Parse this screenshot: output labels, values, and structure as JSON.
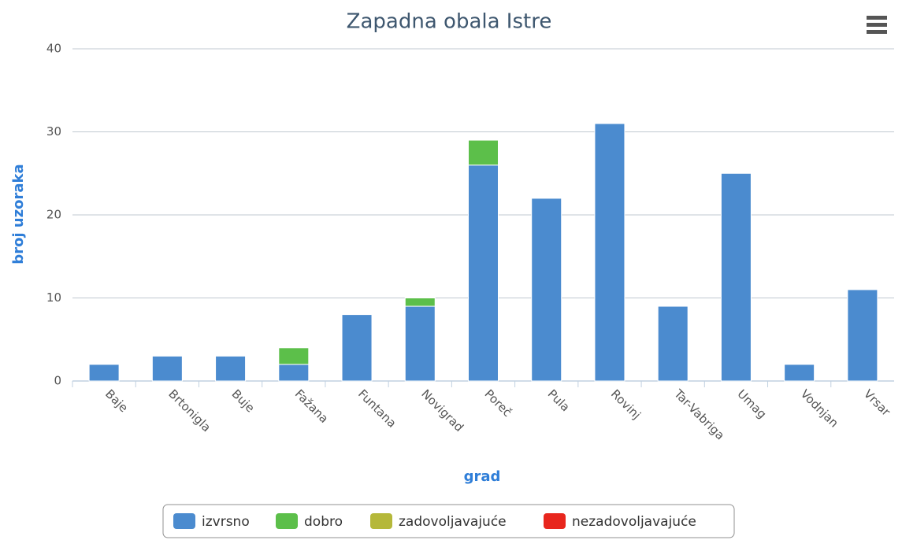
{
  "chart_data": {
    "type": "bar",
    "stacked": true,
    "title": "Zapadna obala Istre",
    "x_label": "grad",
    "y_label": "broj uzoraka",
    "categories": [
      "Baje",
      "Brtonigla",
      "Buje",
      "Fažana",
      "Funtana",
      "Novigrad",
      "Poreč",
      "Pula",
      "Rovinj",
      "Tar-Vabriga",
      "Umag",
      "Vodnjan",
      "Vrsar"
    ],
    "series": [
      {
        "name": "izvrsno",
        "color": "#4b8bcf",
        "values": [
          2,
          3,
          3,
          2,
          8,
          9,
          26,
          22,
          31,
          9,
          25,
          2,
          11
        ]
      },
      {
        "name": "dobro",
        "color": "#5cbf4a",
        "values": [
          0,
          0,
          0,
          2,
          0,
          1,
          3,
          0,
          0,
          0,
          0,
          0,
          0
        ]
      },
      {
        "name": "zadovoljavajuće",
        "color": "#b5b83a",
        "values": [
          0,
          0,
          0,
          0,
          0,
          0,
          0,
          0,
          0,
          0,
          0,
          0,
          0
        ]
      },
      {
        "name": "nezadovoljavajuće",
        "color": "#e8261d",
        "values": [
          0,
          0,
          0,
          0,
          0,
          0,
          0,
          0,
          0,
          0,
          0,
          0,
          0
        ]
      }
    ],
    "ylim": [
      0,
      40
    ],
    "yticks": [
      0,
      10,
      20,
      30,
      40
    ],
    "grid": true,
    "legend": "bottom"
  }
}
